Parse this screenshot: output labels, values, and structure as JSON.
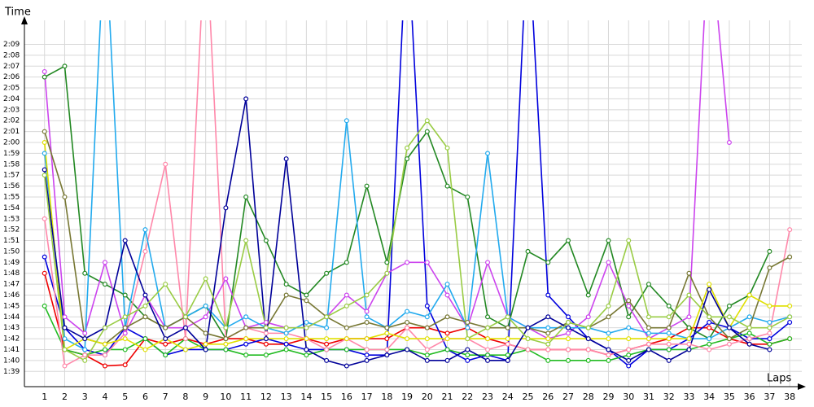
{
  "chart_data": {
    "type": "line",
    "y_label": "Time",
    "x_label": "Laps",
    "x": [
      1,
      2,
      3,
      4,
      5,
      6,
      7,
      8,
      9,
      10,
      11,
      12,
      13,
      14,
      15,
      16,
      17,
      18,
      19,
      20,
      21,
      22,
      23,
      24,
      25,
      26,
      27,
      28,
      29,
      30,
      31,
      32,
      33,
      34,
      35,
      36,
      37,
      38
    ],
    "xticks": [
      1,
      2,
      3,
      4,
      5,
      6,
      7,
      8,
      9,
      10,
      11,
      12,
      13,
      14,
      15,
      16,
      17,
      18,
      19,
      20,
      21,
      22,
      23,
      24,
      25,
      26,
      27,
      28,
      29,
      30,
      31,
      32,
      33,
      34,
      35,
      36,
      37,
      38
    ],
    "xlim": [
      0,
      38.6
    ],
    "ylim": [
      97.6,
      131.2
    ],
    "yticks": [
      {
        "value": 99,
        "label": "1:39"
      },
      {
        "value": 100,
        "label": "1:40"
      },
      {
        "value": 101,
        "label": "1:41"
      },
      {
        "value": 102,
        "label": "1:42"
      },
      {
        "value": 103,
        "label": "1:43"
      },
      {
        "value": 104,
        "label": "1:44"
      },
      {
        "value": 105,
        "label": "1:45"
      },
      {
        "value": 106,
        "label": "1:46"
      },
      {
        "value": 107,
        "label": "1:47"
      },
      {
        "value": 108,
        "label": "1:48"
      },
      {
        "value": 109,
        "label": "1:49"
      },
      {
        "value": 110,
        "label": "1:50"
      },
      {
        "value": 111,
        "label": "1:51"
      },
      {
        "value": 112,
        "label": "1:52"
      },
      {
        "value": 113,
        "label": "1:53"
      },
      {
        "value": 114,
        "label": "1:54"
      },
      {
        "value": 115,
        "label": "1:55"
      },
      {
        "value": 116,
        "label": "1:56"
      },
      {
        "value": 117,
        "label": "1:57"
      },
      {
        "value": 118,
        "label": "1:58"
      },
      {
        "value": 119,
        "label": "1:59"
      },
      {
        "value": 120,
        "label": "2:00"
      },
      {
        "value": 121,
        "label": "2:01"
      },
      {
        "value": 122,
        "label": "2:02"
      },
      {
        "value": 123,
        "label": "2:03"
      },
      {
        "value": 124,
        "label": "2:04"
      },
      {
        "value": 125,
        "label": "2:05"
      },
      {
        "value": 126,
        "label": "2:06"
      },
      {
        "value": 127,
        "label": "2:07"
      },
      {
        "value": 128,
        "label": "2:08"
      },
      {
        "value": 129,
        "label": "2:09"
      }
    ],
    "grid": true,
    "series": [
      {
        "color": "#ee0000",
        "values": [
          108,
          101,
          100.5,
          99.5,
          99.6,
          102,
          101.5,
          102,
          101.5,
          102,
          102,
          101.5,
          101.5,
          102,
          101.5,
          102,
          102,
          102,
          103,
          103,
          102.5,
          103,
          102,
          101.5,
          101,
          101,
          101,
          101,
          100.5,
          101,
          101.5,
          102,
          103,
          103,
          102,
          101.5,
          101.5,
          102
        ]
      },
      {
        "color": "#0000dd",
        "values": [
          109.5,
          103,
          101,
          100.5,
          103,
          102,
          100.5,
          101,
          101,
          101,
          101.5,
          102,
          101.5,
          101,
          101,
          101,
          100.5,
          100.5,
          140,
          105,
          101,
          100,
          100.5,
          100,
          140,
          106,
          104,
          102,
          101,
          99.5,
          101,
          101,
          102,
          103.5,
          103,
          102,
          102,
          103.5
        ]
      },
      {
        "color": "#22bb22",
        "values": [
          105,
          101,
          100.5,
          101,
          101,
          102,
          100.5,
          102,
          101,
          101,
          100.5,
          100.5,
          101,
          100.5,
          101,
          101,
          101,
          101,
          101,
          100.5,
          101,
          100.5,
          100.5,
          100.5,
          101,
          100,
          100,
          100,
          100,
          100.5,
          101,
          101,
          101,
          101.5,
          102,
          102.5,
          101.5,
          102
        ]
      },
      {
        "color": "#228822",
        "values": [
          126,
          127,
          108,
          107,
          106,
          104,
          103,
          104,
          105,
          102,
          115,
          111,
          107,
          106,
          108,
          109,
          116,
          109,
          118.5,
          121,
          116,
          115,
          104,
          103,
          110,
          109,
          111,
          106,
          111,
          104,
          107,
          105,
          103,
          102,
          105,
          106,
          110,
          null
        ]
      },
      {
        "color": "#ff88aa",
        "values": [
          113,
          99.5,
          100.5,
          100.5,
          102.5,
          110,
          118,
          102,
          140,
          102,
          103,
          102.5,
          102.5,
          102,
          101,
          102,
          101,
          101,
          103,
          101,
          102,
          102,
          101,
          101.5,
          101,
          101,
          101,
          101,
          100.5,
          101,
          101.5,
          101.5,
          101.5,
          101,
          101.5,
          102,
          102.5,
          112
        ]
      },
      {
        "color": "#cc44ee",
        "values": [
          126.5,
          104,
          102.5,
          109,
          102.5,
          106,
          103,
          103,
          104,
          107.5,
          103,
          103.5,
          103,
          103,
          104,
          106,
          104.5,
          108,
          109,
          109,
          106,
          103,
          109,
          104,
          103,
          102,
          102.5,
          104,
          109,
          105,
          102,
          103,
          104,
          140,
          120,
          null,
          null,
          null
        ]
      },
      {
        "color": "#22aaee",
        "values": [
          119,
          102,
          101,
          140,
          103,
          112,
          103,
          104,
          105,
          103,
          104,
          103,
          102.5,
          103.5,
          103,
          122,
          104,
          103,
          104.5,
          104,
          107,
          103,
          119,
          104,
          103,
          103,
          103,
          103,
          102.5,
          103,
          102.5,
          102.5,
          102,
          102,
          103,
          104,
          103.5,
          104
        ]
      },
      {
        "color": "#777733",
        "values": [
          121,
          115,
          102,
          101.5,
          103,
          104,
          103,
          104,
          102.5,
          102,
          103,
          103,
          106,
          105.5,
          104,
          103,
          103.5,
          103,
          103.5,
          103,
          104,
          103.5,
          103,
          103,
          103,
          102.5,
          103.5,
          103,
          104,
          105.5,
          103,
          103,
          108,
          104,
          102,
          103,
          108.5,
          109.5
        ]
      },
      {
        "color": "#e0e000",
        "values": [
          120,
          101,
          102,
          101.5,
          102,
          101,
          102,
          101,
          101.5,
          101.5,
          102,
          102,
          102,
          102,
          102,
          102,
          102,
          102.5,
          102,
          102,
          102,
          102,
          102,
          102,
          102,
          102,
          102,
          102,
          102,
          102,
          102,
          102,
          102,
          107,
          103,
          106,
          105,
          105
        ]
      },
      {
        "color": "#000099",
        "values": [
          117.5,
          103,
          102,
          103,
          111,
          106,
          102,
          103,
          101,
          114,
          124,
          102,
          118.5,
          101,
          100,
          99.5,
          100,
          100.5,
          101,
          100,
          100,
          101,
          100,
          100,
          103,
          104,
          103,
          102,
          101,
          100,
          101,
          100,
          101,
          106.5,
          103,
          101.5,
          101,
          null
        ]
      },
      {
        "color": "#99cc44",
        "values": [
          117,
          101,
          100,
          103,
          104,
          105,
          107,
          104,
          107.5,
          103,
          111,
          103,
          103,
          103,
          104,
          105,
          106,
          108,
          119.5,
          122,
          119.5,
          102,
          103,
          104,
          102,
          101.5,
          103.5,
          103,
          105,
          111,
          104,
          104,
          106,
          104,
          104,
          103,
          103,
          104
        ]
      }
    ]
  }
}
